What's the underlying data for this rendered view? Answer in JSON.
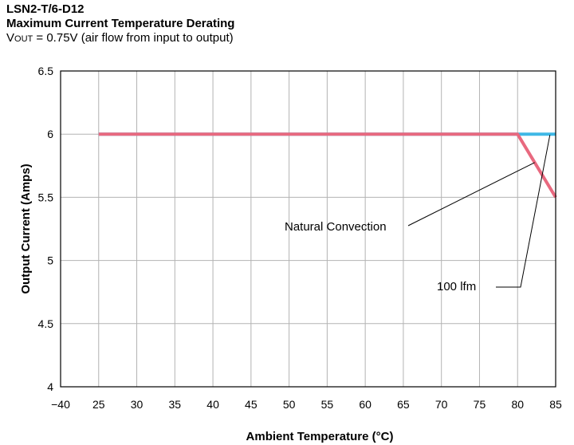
{
  "header": {
    "model": "LSN2-T/6-D12",
    "title": "Maximum Current Temperature Derating",
    "cond_v": "V",
    "cond_sub": "OUT",
    "cond_rest": " = 0.75V (air flow from input to output)"
  },
  "chart_data": {
    "type": "line",
    "title": "Maximum Current Temperature Derating",
    "xlabel": "Ambient Temperature (°C)",
    "ylabel": "Output Current (Amps)",
    "x_ticks": [
      "−40",
      "25",
      "30",
      "35",
      "40",
      "45",
      "50",
      "55",
      "60",
      "65",
      "70",
      "75",
      "80",
      "85"
    ],
    "y_ticks": [
      "6.5",
      "6",
      "5.5",
      "5",
      "4.5",
      "4"
    ],
    "ylim": [
      4,
      6.5
    ],
    "grid": true,
    "series": [
      {
        "name": "100 lfm",
        "color": "#3fb8e6",
        "x": [
          "25",
          "80",
          "85"
        ],
        "y": [
          6.0,
          6.0,
          6.0
        ]
      },
      {
        "name": "Natural Convection",
        "color": "#e8697f",
        "x": [
          "25",
          "80",
          "85"
        ],
        "y": [
          6.0,
          6.0,
          5.5
        ]
      }
    ],
    "annotations": [
      "Natural Convection",
      "100 lfm"
    ]
  }
}
